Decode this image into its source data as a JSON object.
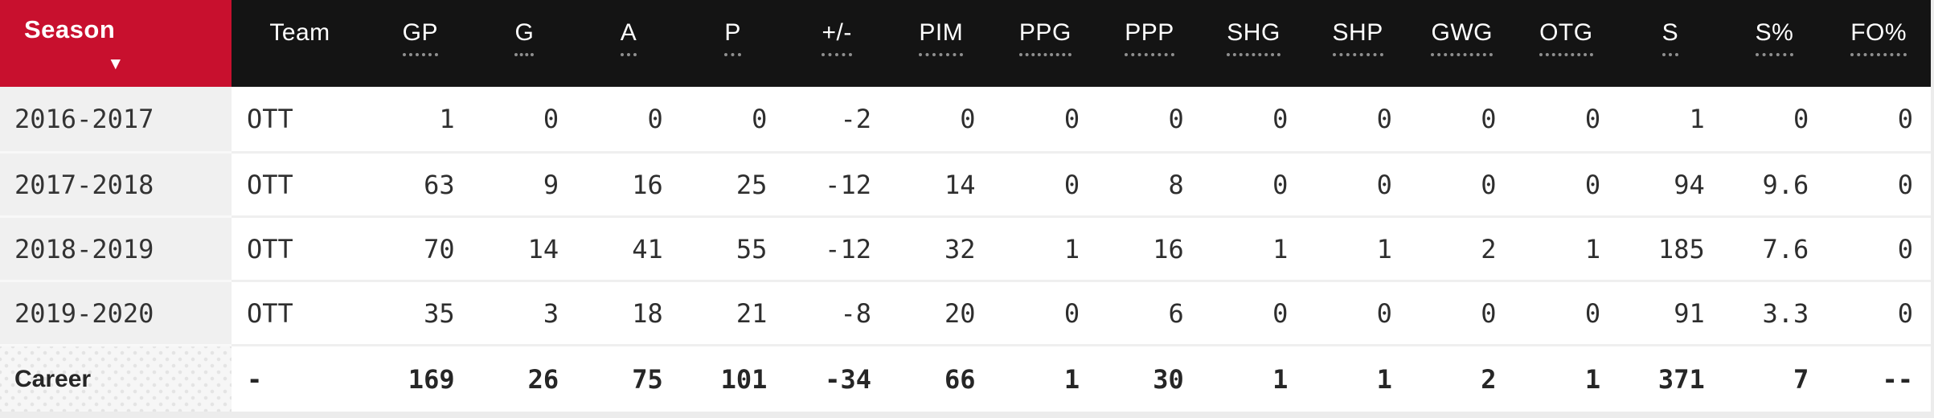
{
  "colors": {
    "accent_red": "#C8102E",
    "header_bg": "#141414",
    "header_text": "#ffffff",
    "season_column_bg": "#f0f0f0",
    "row_bg": "#ffffff",
    "row_separator": "#efefef",
    "career_cell_bg": "#f6f6f6",
    "page_bg": "#ececec"
  },
  "table": {
    "sort_icon": "▼",
    "sorted_column": "season",
    "columns": [
      {
        "key": "season",
        "label": "Season",
        "dotted": false,
        "sorted": true,
        "type": "season"
      },
      {
        "key": "team",
        "label": "Team",
        "dotted": false,
        "sorted": false,
        "type": "team"
      },
      {
        "key": "gp",
        "label": "GP",
        "dotted": true,
        "sorted": false,
        "type": "stat"
      },
      {
        "key": "g",
        "label": "G",
        "dotted": true,
        "sorted": false,
        "type": "stat"
      },
      {
        "key": "a",
        "label": "A",
        "dotted": true,
        "sorted": false,
        "type": "stat"
      },
      {
        "key": "p",
        "label": "P",
        "dotted": true,
        "sorted": false,
        "type": "stat"
      },
      {
        "key": "plus-minus",
        "label": "+/-",
        "dotted": true,
        "sorted": false,
        "type": "stat"
      },
      {
        "key": "pim",
        "label": "PIM",
        "dotted": true,
        "sorted": false,
        "type": "stat"
      },
      {
        "key": "ppg",
        "label": "PPG",
        "dotted": true,
        "sorted": false,
        "type": "stat"
      },
      {
        "key": "ppp",
        "label": "PPP",
        "dotted": true,
        "sorted": false,
        "type": "stat"
      },
      {
        "key": "shg",
        "label": "SHG",
        "dotted": true,
        "sorted": false,
        "type": "stat"
      },
      {
        "key": "shp",
        "label": "SHP",
        "dotted": true,
        "sorted": false,
        "type": "stat"
      },
      {
        "key": "gwg",
        "label": "GWG",
        "dotted": true,
        "sorted": false,
        "type": "stat"
      },
      {
        "key": "otg",
        "label": "OTG",
        "dotted": true,
        "sorted": false,
        "type": "stat"
      },
      {
        "key": "s",
        "label": "S",
        "dotted": true,
        "sorted": false,
        "type": "stat"
      },
      {
        "key": "s-pct",
        "label": "S%",
        "dotted": true,
        "sorted": false,
        "type": "stat"
      },
      {
        "key": "fo-pct",
        "label": "FO%",
        "dotted": true,
        "sorted": false,
        "type": "stat"
      }
    ],
    "rows": [
      {
        "season": "2016-2017",
        "team": "OTT",
        "stats": [
          "1",
          "0",
          "0",
          "0",
          "-2",
          "0",
          "0",
          "0",
          "0",
          "0",
          "0",
          "0",
          "1",
          "0",
          "0"
        ]
      },
      {
        "season": "2017-2018",
        "team": "OTT",
        "stats": [
          "63",
          "9",
          "16",
          "25",
          "-12",
          "14",
          "0",
          "8",
          "0",
          "0",
          "0",
          "0",
          "94",
          "9.6",
          "0"
        ]
      },
      {
        "season": "2018-2019",
        "team": "OTT",
        "stats": [
          "70",
          "14",
          "41",
          "55",
          "-12",
          "32",
          "1",
          "16",
          "1",
          "1",
          "2",
          "1",
          "185",
          "7.6",
          "0"
        ]
      },
      {
        "season": "2019-2020",
        "team": "OTT",
        "stats": [
          "35",
          "3",
          "18",
          "21",
          "-8",
          "20",
          "0",
          "6",
          "0",
          "0",
          "0",
          "0",
          "91",
          "3.3",
          "0"
        ]
      }
    ],
    "career": {
      "season": "Career",
      "team": "-",
      "stats": [
        "169",
        "26",
        "75",
        "101",
        "-34",
        "66",
        "1",
        "30",
        "1",
        "1",
        "2",
        "1",
        "371",
        "7",
        "--"
      ]
    }
  }
}
